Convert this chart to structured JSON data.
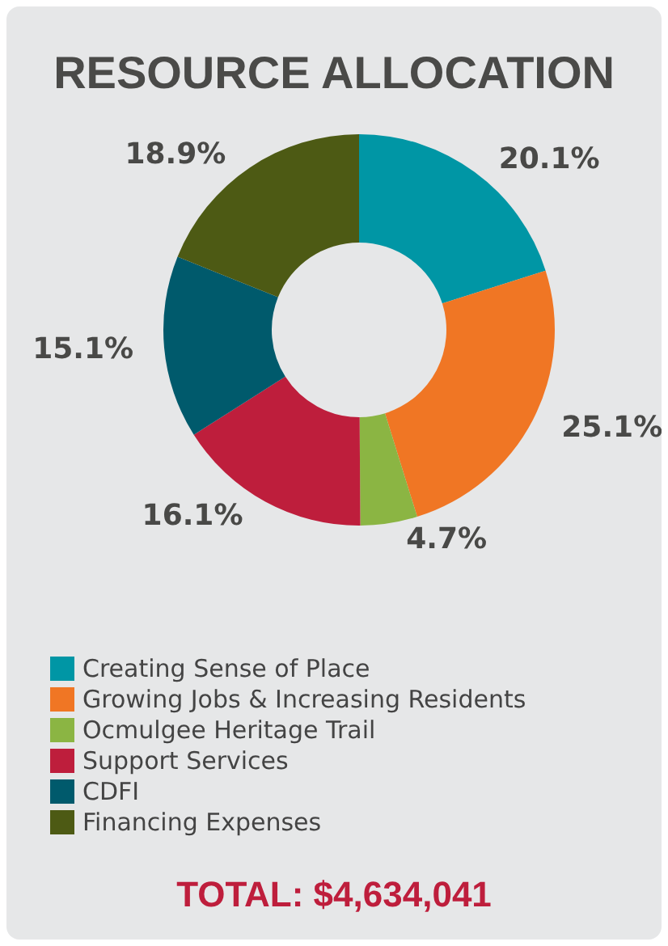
{
  "chart_data": {
    "type": "donut",
    "title": "RESOURCE ALLOCATION",
    "categories": [
      "Creating Sense of Place",
      "Growing Jobs & Increasing Residents",
      "Ocmulgee Heritage Trail",
      "Support Services",
      "CDFI",
      "Financing Expenses"
    ],
    "values": [
      20.1,
      25.1,
      4.7,
      16.1,
      15.1,
      18.9
    ],
    "colors": [
      "#0096a5",
      "#f07624",
      "#8bb543",
      "#be1e3c",
      "#005a6c",
      "#4d5a14"
    ],
    "value_labels": [
      "20.1%",
      "25.1%",
      "4.7%",
      "16.1%",
      "15.1%",
      "18.9%"
    ],
    "legend": "bottom",
    "annotations": [
      "TOTAL: $4,634,041"
    ]
  }
}
